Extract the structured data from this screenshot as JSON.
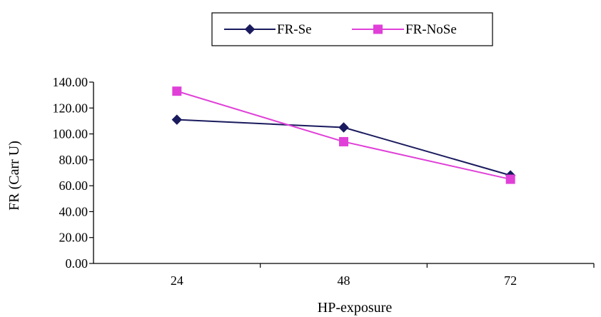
{
  "chart_data": {
    "type": "line",
    "categories": [
      "24",
      "48",
      "72"
    ],
    "xlabel": "HP-exposure",
    "ylabel": "FR (Carr U)",
    "ylim": [
      0,
      140
    ],
    "ytick_step": 20,
    "ytick_labels": [
      "0.00",
      "20.00",
      "40.00",
      "60.00",
      "80.00",
      "100.00",
      "120.00",
      "140.00"
    ],
    "grid": false,
    "legend_position": "top-center",
    "series": [
      {
        "name": "FR-Se",
        "values": [
          111,
          105,
          68
        ],
        "color": "#1a1a5e",
        "marker": "diamond"
      },
      {
        "name": "FR-NoSe",
        "values": [
          133,
          94,
          65
        ],
        "color": "#e040d8",
        "marker": "square"
      }
    ]
  }
}
